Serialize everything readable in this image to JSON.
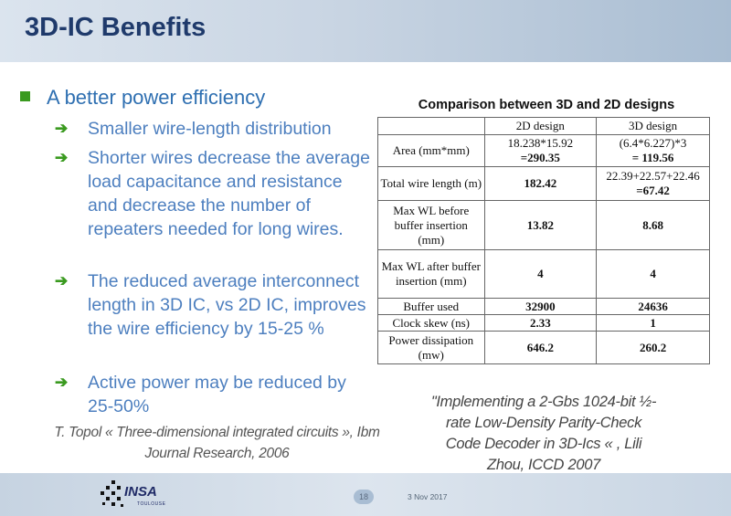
{
  "slide": {
    "title": "3D-IC Benefits",
    "main_bullet": "A better power efficiency",
    "sub_bullets": [
      "Smaller wire-length distribution",
      "Shorter wires decrease the average load capacitance and resistance and decrease the number of repeaters needed for long wires.",
      "The reduced average interconnect length in 3D IC, vs 2D IC, improves the wire efficiency by 15-25 %",
      "Active power may be reduced by 25-50%"
    ],
    "citation_left": "T. Topol « Three-dimensional integrated circuits », Ibm Journal Research, 2006",
    "citation_right": "\"Implementing a 2-Gbs 1024-bit ½-rate Low-Density Parity-Check Code Decoder in 3D-Ics « , Lili Zhou, ICCD 2007",
    "colors": {
      "title": "#1f3a6b",
      "bullet_text": "#2e6fb1",
      "bullet_marker": "#3a9a1f"
    }
  },
  "table": {
    "caption": "Comparison between 3D and 2D designs",
    "headers": [
      "",
      "2D design",
      "3D design"
    ],
    "rows": [
      {
        "label": "Area (mm*mm)",
        "d2": "18.238*15.92",
        "d2b": "=290.35",
        "d3": "(6.4*6.227)*3",
        "d3b": "= 119.56"
      },
      {
        "label": "Total wire length (m)",
        "d2": "182.42",
        "d3": "22.39+22.57+22.46",
        "d3b": "=67.42"
      },
      {
        "label": "Max WL before buffer insertion (mm)",
        "d2": "13.82",
        "d3": "8.68"
      },
      {
        "label": "Max WL after buffer insertion (mm)",
        "d2": "4",
        "d3": "4"
      },
      {
        "label": "Buffer used",
        "d2": "32900",
        "d3": "24636"
      },
      {
        "label": "Clock skew (ns)",
        "d2": "2.33",
        "d3": "1"
      },
      {
        "label": "Power dissipation (mw)",
        "d2": "646.2",
        "d3": "260.2"
      }
    ]
  },
  "footer": {
    "logo_text": "INSA",
    "logo_sub": "TOULOUSE",
    "page_number": "18",
    "date": "3 Nov 2017"
  }
}
